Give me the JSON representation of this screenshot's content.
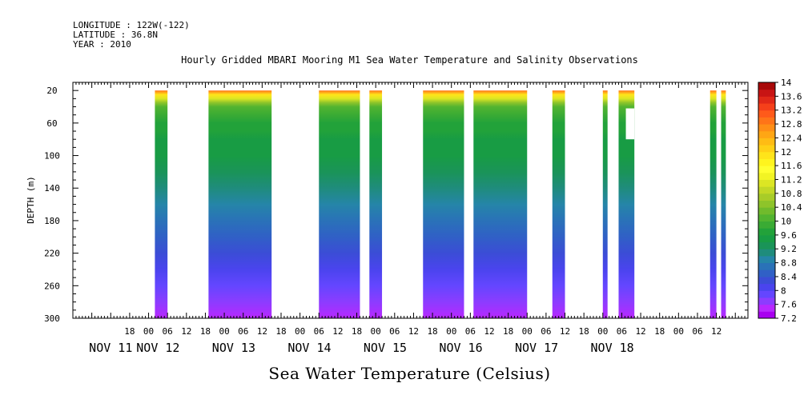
{
  "header": {
    "longitude": "LONGITUDE : 122W(-122)",
    "latitude": "LATITUDE : 36.8N",
    "year": "YEAR : 2010"
  },
  "chart_data": {
    "type": "heatmap",
    "title": "Hourly Gridded MBARI Mooring M1 Sea Water Temperature and Salinity Observations",
    "xlabel": "Sea Water Temperature (Celsius)",
    "ylabel": "DEPTH (m)",
    "ylim": [
      300,
      10
    ],
    "y_ticks": [
      20,
      60,
      100,
      140,
      180,
      220,
      260,
      300
    ],
    "x_range_hours": [
      -15,
      199
    ],
    "x_hour_ticks": [
      {
        "h": 3,
        "label": "18"
      },
      {
        "h": 9,
        "label": "00"
      },
      {
        "h": 15,
        "label": "06"
      },
      {
        "h": 21,
        "label": "12"
      },
      {
        "h": 27,
        "label": "18"
      },
      {
        "h": 33,
        "label": "00"
      },
      {
        "h": 39,
        "label": "06"
      },
      {
        "h": 45,
        "label": "12"
      },
      {
        "h": 51,
        "label": "18"
      },
      {
        "h": 57,
        "label": "00"
      },
      {
        "h": 63,
        "label": "06"
      },
      {
        "h": 69,
        "label": "12"
      },
      {
        "h": 75,
        "label": "18"
      },
      {
        "h": 81,
        "label": "00"
      },
      {
        "h": 87,
        "label": "06"
      },
      {
        "h": 93,
        "label": "12"
      },
      {
        "h": 99,
        "label": "18"
      },
      {
        "h": 105,
        "label": "00"
      },
      {
        "h": 111,
        "label": "06"
      },
      {
        "h": 117,
        "label": "12"
      },
      {
        "h": 123,
        "label": "18"
      },
      {
        "h": 129,
        "label": "00"
      },
      {
        "h": 135,
        "label": "06"
      },
      {
        "h": 141,
        "label": "12"
      },
      {
        "h": 147,
        "label": "18"
      },
      {
        "h": 153,
        "label": "00"
      },
      {
        "h": 159,
        "label": "06"
      },
      {
        "h": 165,
        "label": "12"
      },
      {
        "h": 171,
        "label": "18"
      },
      {
        "h": 177,
        "label": "00"
      },
      {
        "h": 183,
        "label": "06"
      },
      {
        "h": 189,
        "label": "12"
      }
    ],
    "x_day_labels": [
      {
        "h": -3,
        "label": "NOV 11"
      },
      {
        "h": 12,
        "label": "NOV 12"
      },
      {
        "h": 36,
        "label": "NOV 13"
      },
      {
        "h": 60,
        "label": "NOV 14"
      },
      {
        "h": 84,
        "label": "NOV 15"
      },
      {
        "h": 108,
        "label": "NOV 16"
      },
      {
        "h": 132,
        "label": "NOV 17"
      },
      {
        "h": 156,
        "label": "NOV 18"
      }
    ],
    "segments": [
      {
        "start": 11,
        "end": 15
      },
      {
        "start": 28,
        "end": 48
      },
      {
        "start": 63,
        "end": 76
      },
      {
        "start": 79,
        "end": 83
      },
      {
        "start": 96,
        "end": 109
      },
      {
        "start": 112,
        "end": 129
      },
      {
        "start": 137,
        "end": 141
      },
      {
        "start": 153,
        "end": 154.5
      },
      {
        "start": 158,
        "end": 163
      },
      {
        "start": 187,
        "end": 189
      },
      {
        "start": 190.5,
        "end": 192
      }
    ],
    "colorbar_levels": [
      7.2,
      7.4,
      7.6,
      7.8,
      8,
      8.2,
      8.4,
      8.6,
      8.8,
      9,
      9.2,
      9.4,
      9.6,
      9.8,
      10,
      10.2,
      10.4,
      10.6,
      10.8,
      11,
      11.2,
      11.4,
      11.6,
      11.8,
      12,
      12.2,
      12.4,
      12.6,
      12.8,
      13,
      13.2,
      13.4,
      13.6,
      13.8,
      14
    ],
    "colorbar_labels": [
      "7.2",
      "7.6",
      "8",
      "8.4",
      "8.8",
      "9.2",
      "9.6",
      "10",
      "10.4",
      "10.8",
      "11.2",
      "11.6",
      "12",
      "12.4",
      "12.8",
      "13.2",
      "13.6",
      "14"
    ],
    "colorbar_colors": [
      "#a800f0",
      "#b828ff",
      "#8c3cff",
      "#6446ff",
      "#4a44ee",
      "#3b4dd6",
      "#3060c6",
      "#2a72b8",
      "#2585a8",
      "#1f8c7c",
      "#1a9458",
      "#189c44",
      "#22a23a",
      "#3aab34",
      "#52b430",
      "#70bb2c",
      "#8ec42a",
      "#a8cc28",
      "#c2d826",
      "#dce624",
      "#f2f424",
      "#ffff30",
      "#fff41e",
      "#ffe41a",
      "#ffd016",
      "#ffbc14",
      "#ffa614",
      "#ff8e16",
      "#ff7418",
      "#ff5a1a",
      "#f5401a",
      "#e02818",
      "#c81414",
      "#a80808"
    ],
    "temperature_profile": {
      "depths": [
        20,
        25,
        30,
        35,
        40,
        50,
        60,
        70,
        80,
        90,
        100,
        120,
        140,
        160,
        180,
        200,
        220,
        240,
        260,
        280,
        300
      ],
      "temps": [
        12.8,
        11.8,
        11.0,
        10.4,
        10.1,
        9.8,
        9.7,
        9.6,
        9.55,
        9.5,
        9.45,
        9.3,
        9.1,
        8.9,
        8.7,
        8.5,
        8.3,
        8.1,
        7.9,
        7.7,
        7.45
      ]
    }
  }
}
